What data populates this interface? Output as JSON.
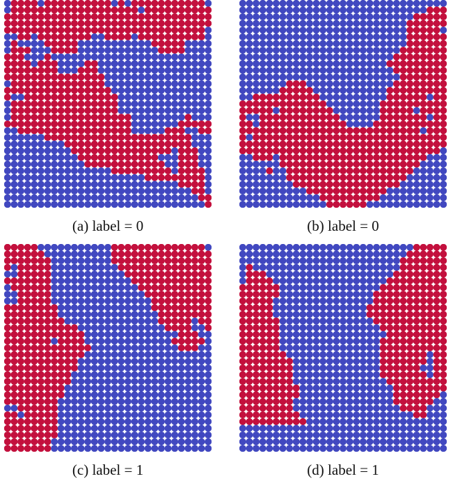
{
  "colors": {
    "red": "#c3103d",
    "blue": "#4148c0"
  },
  "panels": [
    {
      "caption": "(a) label = 0",
      "grid": [
        "BRRRRBRRRRRRRRRRBRBRRRRRRRRRRRB",
        "BRRRRRRRRRRRRRRRRRRRBRRRRRRRRRR",
        "RRRRRRRRRRRRRRRRRRRRRRRRRRRRRRR",
        "RRRRRRRRRRRRRRRRRRRRRRRRRRRRRRR",
        "RRRRRRRRRRRRRRRRRRRRRRRRRRRRRRB",
        "BBRRBRRRRRRRRBBRRRRBRRRRRRRRRRB",
        "BRBBBBRRRRRBBBBBBBBBBBRRRRRBBBB",
        "BRRRBBBRRRRBBBBBBBBBBBBRRRRBBBB",
        "RRRBBBRBBBBBBBBBBBBBBBBBBBBBBBB",
        "RRRRBRRRBBBBRRBBBBBBBBBBBBBBBBB",
        "RRRRRRRRBBBRRRBBBBBBBBBBBBBBBBB",
        "RRRRRRRRRRRRRRRBBBBBBBBBBBBBBBB",
        "BRRRRRRRRRRRRRRBBBBBBBBBBBBBBBB",
        "RRRRRRRRRRRRRRRRBBBBBBBBBBBBBBB",
        "RBBRRRRRRRRRRRRRRBBBBBBBBBBBBBB",
        "BRRRRRRRRRRRRRRRRBBBBBBBBBBBBBB",
        "BRRRRRRRRRRRRRRRRBBBBBBBBBBBBBB",
        "BRRRRRRRRRRRRRRRRRRBBBBBBBBRBBB",
        "RRRRRRRRRRRRRRRRRRRBBBBBBBRRRRR",
        "BBRRRRRRRRRRRRRRRRRBBBBBRRRBBRR",
        "BBBBBBRRRRRRRRRRRRRRRRRRRRRRBBB",
        "BBBBBBBBBRRRRRRRRRRRRRRRRRRRBBB",
        "BBBBBBBBBBRRRRRRRRRRRRRRRBRRRBB",
        "BBBBBBBBBBBRRRRRRRRRRRRBBBRRRBB",
        "BBBBBBBBBBBBRRRRRRRRRRRRBBRRRBB",
        "BBBBBBBBBBBBBBBBRRRRRRRRRBRRRRB",
        "BBBBBBBBBBBBBBBBBBBBBRRRRRRRRRB",
        "BBBBBBBBBBBBBBBBBBBBBBBBBBRRRRB",
        "BBBBBBBBBBBBBBBBBBBBBBBBBBBBRRB",
        "BBBBBBBBBBBBBBBBBBBBBBBBBBBBBRR",
        "BBBBBBBBBBBBBBBBBBBBBBBBBBBBBBR"
      ]
    },
    {
      "caption": "(b) label = 0",
      "grid": [
        "BBBBBBBBBBBBBBBBBBBBBBBBBBBBBBB",
        "BBBBBBBBBBBBBBBBBBBBBBBBBBBBRRR",
        "BBBBBBBBBBBBBBBBBBBBBBBBBBRRRRR",
        "BBBBBBBBBBBBBBBBBBBBBBBBBRRRRRR",
        "BBBBBBBBBBBBBBBBBBBBBBBBBRRRRRB",
        "BBBBBBBBBBBBBBBBBBBBBBBBBRRRRRR",
        "BBBBBBBBBBBBBBBBBBBBBBBBBRRRRRR",
        "BBBBBBBBBBBBBBBBBBBBBBBBRRRRRRR",
        "BBBBBBBBBBBBBBBBBBBBBBBRRRRRRRR",
        "BBBBBBBBBBBBBBBBBBBBBBRRRRRRRRR",
        "BBBBBBBBBBBBBBBBBBBBBBBRRRRRRRR",
        "BBBBBBBBBBBBBBBBBBBBBBBBRRRRRRR",
        "BBBBBBBRRRBBBBBBBBBBBBBRRRRRRRR",
        "BBBBBBRRRRRBBBBBBBBBBBRRRRRRRRR",
        "BBRRRRRRRRRRBBBBBBBBBBRRRRRRBRR",
        "RRRRRRRRRRRRRBBBBBBBBRRRRRRRRRR",
        "RRRRRBRRRRRRRRBBBBBBBRRRRRBRRRR",
        "RBBRRRRRRRRRRRRBBBBBBRRRRRRRBRR",
        "RRBRRRRRRRRRRRRRBBBBRRRRRRRRRRR",
        "RRRRRRRRRRRRRRRRRRRRRRRRRRRBRRR",
        "RBRRRRRRRRRRRRRRRRRRRRRRRRRRRRR",
        "RRRRRRRRRRRRRRRRRRRRRRRRRRRRRRR",
        "RRRRRRRRRRRRRRRRRRRRRRRRRRRRRRB",
        "BBRRRBRRRRRRRRRRRRRRRRRRRRRRBBB",
        "BBBBBBRRRRRRRRRRRRRRRRRRRRRBBBB",
        "BBBBRBBRRRRRRRRRRRRRRRRRRRBBBBB",
        "BBBBBBBRRRRRRRRRRRRRRRRRRBBBBBB",
        "BBBBBBBBRRRRRRRRRRRRRRRRBBBBBBB",
        "BBBBBBBBBBRRRRRRRRRRRRBBBBBBBBB",
        "BBBBBBBBBBBBRRRRRRRRRBBBBBBBBBB",
        "BBBBBBBBBBBBBRRRRRRBBBBBBBBBBBB"
      ]
    },
    {
      "caption": "(c) label = 1",
      "grid": [
        "RRRRRBBBBBBBBBBBRRRRRRRRRRRRRRB",
        "RRRRRRBBBBBBBBBBRRRRRRRRRRRRRRR",
        "RRRRRRRBBBBBBBBBRRRRRRRRRRRRRRR",
        "RBRRRRRBBBBBBBBBBRRRRRRRRRRRRRR",
        "BBRRRRRBBBBBBBBBBBRRRRRRRRRRRRR",
        "RRRRRRRBBBBBBBBBBBBRRRRRRRRRRRR",
        "BRRRRRRBBBBBBBBBBBBBRRRRRRRRRRR",
        "BBRRRRRBBBBBBBBBBBBBBRRRRRRRRRR",
        "BBRRRRRBBBBBBBBBBBBBBBRRRRRRRRR",
        "RRRRRRRRBBBBBBBBBBBBBBRRRRRRRRR",
        "RRRRRRRRBBBBBBBBBBBBBBBRRRRRRRR",
        "RRRRRRRRRBBBBBBBBBBBBBBRRRRRBRR",
        "RRRRRRRRRRRBBBBBBBBBBBBBRRRRBBR",
        "RRRRRRRRRRRRBBBBBBBBBBBBBBRRRBB",
        "RRRRRRRBRRRRBBBBBBBBBBBBBRRRRRB",
        "RRRRRRRRRRRRRBBBBBBBBBBBBBRRRBB",
        "RRRRRRRRRRRRBBBBBBBBBBBBBBBBBBB",
        "RRRRRRRRRRRBBBBBBBBBBBBBBBBBBBB",
        "RRRRRRRRRRRBBBBBBBBBBBBBBBBBBBB",
        "RRRRRRRRRRBBBBBBBBBBBBBBBBBBBBB",
        "RRRRRRRRRRBBBBBBBBBBBBBBBBBBBBB",
        "RRRRRRRRRBBBBBBBBBBBBBBBBBBBBBB",
        "RRRRRRRRRBBBBBBBBBBBBBBBBBBBBBB",
        "RRRRRRRRBBBBBBBBBBBBBBBBBBBBBBB",
        "BBRRRRRRBBBBBBBBBBBBBBBBBBBBBBB",
        "RRBRRRRRBBBBBBBBBBBBBBBBBBBBBBB",
        "RRRRRRRRBBBBBBBBBBBBBBBBBBBBBBB",
        "RRRRRRRRBBBBBBBBBBBBBBBBBBBBBBB",
        "RRRRRRRRBBBBBBBBBBBBBBBBBBBBBBB",
        "RRRRRRRBBBBBBBBBBBBBBBBBBBBBBBB",
        "RRRRRRRBBBBBBBBBBBBBBBBBBBBBBBB"
      ]
    },
    {
      "caption": "(d) label = 1",
      "grid": [
        "BBBBBBBBBBBBBBBBBBBBBBBBBBRRRRR",
        "BBBBBBBBBBBBBBBBBBBBBBBBBRRRRRR",
        "BBBBBBBBBBBBBBBBBBBBBBBBRRRRRRR",
        "BRBBBBBBBBBBBBBBBBBBBBBBRRRRRRR",
        "BRRRBBBBBBBBBBBBBBBBBBBRRRRRRRR",
        "BRRRRBBBBBBBBBBBBBBBBBRRRRRRRRR",
        "RRRRRRBBBBBBBBBBBBBBBRRRRRRRRRR",
        "RRRRRRBBBBBBBBBBBBBBRRRRRRRRRRR",
        "RRRRRBBBBBBBBBBBBBBBRRRRRRRRRRR",
        "RRRRRBBBBBBBBBBBBBBRRRRRRRRRRRR",
        "RRRRRBBBBBBBBBBBBBBRRRRRRRRRRRR",
        "RRRRRRBBBBBBBBBBBBBBRRRRRRRRRRR",
        "RRRRRRBBBBBBBBBBBBBBBRRRRRRRRRR",
        "RRRRRRBBBBBBBBBBBBBBBBRRRRRRRRR",
        "RRRRRRBBBBBBBBBBBBBBBRRRRRRRRRR",
        "RRRRRRBBBBBBBBBBBBBBBRRRRRRRRRR",
        "RRRRRRRBBBBBBBBBBBBBBRRRRRRRBRR",
        "RRRRRRRRBBBBBBBBBBBBBRRRRRRRBRR",
        "RRRRRRRRBBBBBBBBBBBBBRRRRRRBBRR",
        "RRRRRRRRBBBBBBBBBBBBBRRRRRRRBRR",
        "RRRRRRRRBBBBBBBBBBBBBBRRRRRRRRR",
        "RRRRRRRRRBBBBBBBBBBBBBBRRRRRRRR",
        "RRRRRRRRRBBBBBBBBBBBBBBRRRRRRRB",
        "RRRRRRRRBBBBBBBBBBBBBBBRRRRRRBB",
        "RRRRRRRRBBBBBBBBBBBBBBBBRRRRBBB",
        "RRRRRRRRRBBBBBBBBBBBBBBBBBRRBBB",
        "RRRRRRRRRRBBBBBBBBBBBBBBBBBBBBB",
        "BBBBBBBBBBBBBBBBBBBBBBBBBBBBBBB",
        "BBBBBBBBBBBBBBBBBBBBBBBBBBBBBBB",
        "BBBBBBBBBBBBBBBBBBBBBBBBBBBBBBB",
        "BBBBBBBBBBBBBBBBBBBBBBBBBBBBBBB"
      ]
    }
  ]
}
